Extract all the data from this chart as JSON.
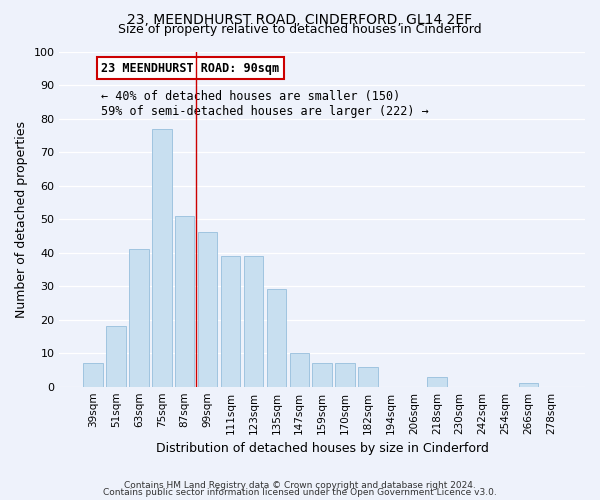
{
  "title": "23, MEENDHURST ROAD, CINDERFORD, GL14 2EF",
  "subtitle": "Size of property relative to detached houses in Cinderford",
  "xlabel": "Distribution of detached houses by size in Cinderford",
  "ylabel": "Number of detached properties",
  "bar_color": "#c8dff0",
  "bar_edge_color": "#a0c4e0",
  "categories": [
    "39sqm",
    "51sqm",
    "63sqm",
    "75sqm",
    "87sqm",
    "99sqm",
    "111sqm",
    "123sqm",
    "135sqm",
    "147sqm",
    "159sqm",
    "170sqm",
    "182sqm",
    "194sqm",
    "206sqm",
    "218sqm",
    "230sqm",
    "242sqm",
    "254sqm",
    "266sqm",
    "278sqm"
  ],
  "values": [
    7,
    18,
    41,
    77,
    51,
    46,
    39,
    39,
    29,
    10,
    7,
    7,
    6,
    0,
    0,
    3,
    0,
    0,
    0,
    1,
    0
  ],
  "ylim": [
    0,
    100
  ],
  "yticks": [
    0,
    10,
    20,
    30,
    40,
    50,
    60,
    70,
    80,
    90,
    100
  ],
  "vline_x": 4.5,
  "annotation_title": "23 MEENDHURST ROAD: 90sqm",
  "annotation_line1": "← 40% of detached houses are smaller (150)",
  "annotation_line2": "59% of semi-detached houses are larger (222) →",
  "annotation_box_color": "#ffffff",
  "annotation_box_edge": "#cc0000",
  "vline_color": "#cc0000",
  "footer1": "Contains HM Land Registry data © Crown copyright and database right 2024.",
  "footer2": "Contains public sector information licensed under the Open Government Licence v3.0.",
  "background_color": "#eef2fb",
  "plot_background": "#eef2fb"
}
